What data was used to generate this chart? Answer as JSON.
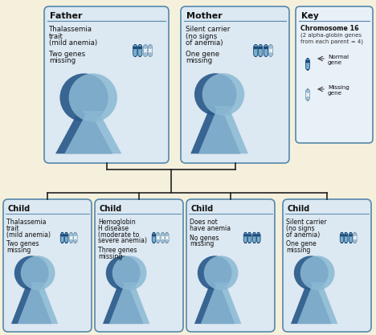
{
  "bg_color": "#f5f0dc",
  "card_bg": "#dce8f2",
  "card_border": "#5588aa",
  "key_bg": "#e8f0f8",
  "line_color": "#222222",
  "chr_body": "#7aadcc",
  "chr_dark": "#1a4a7a",
  "chr_missing_body": "#a0c0d8",
  "text_dark": "#111111",
  "father": {
    "title": "Father",
    "lines": [
      "Thalassemia",
      "trait",
      "(mild anemia)",
      "",
      "Two genes",
      "missing"
    ],
    "missing": 2
  },
  "mother": {
    "title": "Mother",
    "lines": [
      "Silent carrier",
      "(no signs",
      "of anemia)",
      "",
      "One gene",
      "missing"
    ],
    "missing": 1
  },
  "children": [
    {
      "title": "Child",
      "lines": [
        "Thalassemia",
        "trait",
        "(mild anemia)",
        "",
        "Two genes",
        "missing"
      ],
      "missing": 2
    },
    {
      "title": "Child",
      "lines": [
        "Hemoglobin",
        "H disease",
        "(moderate to",
        "severe anemia)",
        "",
        "Three genes",
        "missing"
      ],
      "missing": 3
    },
    {
      "title": "Child",
      "lines": [
        "Does not",
        "have anemia",
        "",
        "No genes",
        "missing"
      ],
      "missing": 0
    },
    {
      "title": "Child",
      "lines": [
        "Silent carrier",
        "(no signs",
        "of anemia)",
        "",
        "One gene",
        "missing"
      ],
      "missing": 1
    }
  ],
  "key": {
    "title": "Key",
    "line1": "Chromosome 16",
    "line2": "(2 alpha-globin genes",
    "line3": "from each parent = 4)",
    "normal_label": "Normal\ngene",
    "missing_label": "Missing\ngene"
  }
}
